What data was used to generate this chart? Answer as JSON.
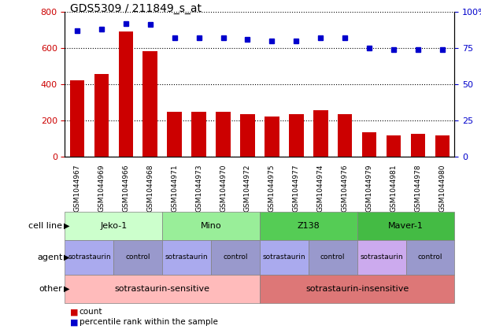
{
  "title": "GDS5309 / 211849_s_at",
  "samples": [
    "GSM1044967",
    "GSM1044969",
    "GSM1044966",
    "GSM1044968",
    "GSM1044971",
    "GSM1044973",
    "GSM1044970",
    "GSM1044972",
    "GSM1044975",
    "GSM1044977",
    "GSM1044974",
    "GSM1044976",
    "GSM1044979",
    "GSM1044981",
    "GSM1044978",
    "GSM1044980"
  ],
  "counts": [
    420,
    455,
    690,
    580,
    248,
    248,
    248,
    232,
    222,
    232,
    255,
    232,
    135,
    115,
    125,
    115
  ],
  "percentiles": [
    87,
    88,
    92,
    91,
    82,
    82,
    82,
    81,
    80,
    80,
    82,
    82,
    75,
    74,
    74,
    74
  ],
  "bar_color": "#cc0000",
  "dot_color": "#0000cc",
  "left_ylim": [
    0,
    800
  ],
  "right_ylim": [
    0,
    100
  ],
  "left_yticks": [
    0,
    200,
    400,
    600,
    800
  ],
  "right_yticks": [
    0,
    25,
    50,
    75,
    100
  ],
  "right_yticklabels": [
    "0",
    "25",
    "50",
    "75",
    "100%"
  ],
  "cell_lines": [
    {
      "label": "Jeko-1",
      "start": 0,
      "end": 4,
      "color": "#ccffcc"
    },
    {
      "label": "Mino",
      "start": 4,
      "end": 8,
      "color": "#99ee99"
    },
    {
      "label": "Z138",
      "start": 8,
      "end": 12,
      "color": "#55cc55"
    },
    {
      "label": "Maver-1",
      "start": 12,
      "end": 16,
      "color": "#44bb44"
    }
  ],
  "agents": [
    {
      "label": "sotrastaurin",
      "start": 0,
      "end": 2,
      "color": "#aaaaee"
    },
    {
      "label": "control",
      "start": 2,
      "end": 4,
      "color": "#9999cc"
    },
    {
      "label": "sotrastaurin",
      "start": 4,
      "end": 6,
      "color": "#aaaaee"
    },
    {
      "label": "control",
      "start": 6,
      "end": 8,
      "color": "#9999cc"
    },
    {
      "label": "sotrastaurin",
      "start": 8,
      "end": 10,
      "color": "#aaaaee"
    },
    {
      "label": "control",
      "start": 10,
      "end": 12,
      "color": "#9999cc"
    },
    {
      "label": "sotrastaurin",
      "start": 12,
      "end": 14,
      "color": "#ccaaee"
    },
    {
      "label": "control",
      "start": 14,
      "end": 16,
      "color": "#9999cc"
    }
  ],
  "others": [
    {
      "label": "sotrastaurin-sensitive",
      "start": 0,
      "end": 8,
      "color": "#ffbbbb"
    },
    {
      "label": "sotrastaurin-insensitive",
      "start": 8,
      "end": 16,
      "color": "#dd7777"
    }
  ],
  "row_labels": [
    "cell line",
    "agent",
    "other"
  ],
  "legend_count_color": "#cc0000",
  "legend_dot_color": "#0000cc",
  "tick_color_left": "#cc0000",
  "tick_color_right": "#0000cc"
}
